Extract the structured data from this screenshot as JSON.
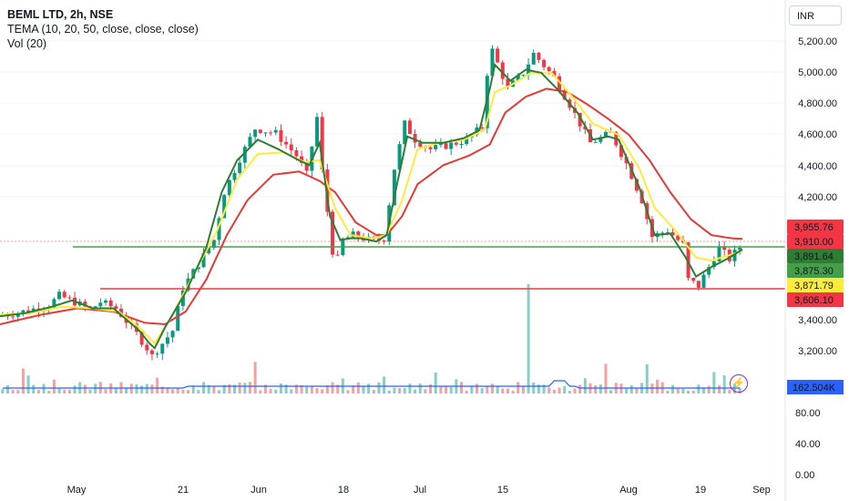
{
  "legend": {
    "symbol": "BEML LTD, 2h, NSE",
    "indicator": "TEMA (10, 20, 50, close, close, close)",
    "volume": "Vol (20)"
  },
  "currency": "INR",
  "colors": {
    "up": "#089981",
    "down": "#f23645",
    "tema_fast": "#2e7d32",
    "tema_mid": "#ffeb3b",
    "tema_slow": "#e53935",
    "support_top": "#43a047",
    "support_bottom": "#f23645",
    "volume_ma": "#2962ff"
  },
  "chart_data": {
    "type": "candlestick",
    "y_ticks": [
      "5,200.00",
      "5,000.00",
      "4,800.00",
      "4,600.00",
      "4,400.00",
      "4,200.00",
      "3,400.00",
      "3,200.00"
    ],
    "y_range": [
      3075,
      5250
    ],
    "x_ticks": [
      "May",
      "21",
      "Jun",
      "18",
      "Jul",
      "15",
      "Aug",
      "19",
      "Sep"
    ],
    "horizontal_lines": [
      {
        "price": 3891.64,
        "color": "#43a047"
      },
      {
        "price": 3606.1,
        "color": "#f23645"
      }
    ],
    "price_labels": [
      {
        "text": "3,955.76",
        "bg": "#f23645"
      },
      {
        "text": "3,910.00",
        "bg": "#f23645"
      },
      {
        "text": "3,891.64",
        "bg": "#2e7d32"
      },
      {
        "text": "3,875.30",
        "bg": "#43a047"
      },
      {
        "text": "3,871.79",
        "bg": "#ffeb3b"
      },
      {
        "text": "3,606.10",
        "bg": "#f23645"
      }
    ],
    "close_path": [
      [
        0,
        3470
      ],
      [
        5,
        3500
      ],
      [
        10,
        3540
      ],
      [
        12,
        3600
      ],
      [
        15,
        3560
      ],
      [
        18,
        3510
      ],
      [
        20,
        3560
      ],
      [
        23,
        3520
      ],
      [
        27,
        3360
      ],
      [
        29,
        3270
      ],
      [
        30,
        3220
      ],
      [
        34,
        3380
      ],
      [
        36,
        3650
      ],
      [
        38,
        3750
      ],
      [
        42,
        3950
      ],
      [
        44,
        4250
      ],
      [
        47,
        4460
      ],
      [
        50,
        4650
      ],
      [
        54,
        4620
      ],
      [
        58,
        4480
      ],
      [
        60,
        4360
      ],
      [
        62,
        4720
      ],
      [
        63,
        4380
      ],
      [
        65,
        3880
      ],
      [
        66,
        3830
      ],
      [
        67,
        3950
      ],
      [
        69,
        3980
      ],
      [
        73,
        3940
      ],
      [
        75,
        3960
      ],
      [
        77,
        4400
      ],
      [
        79,
        4680
      ],
      [
        81,
        4580
      ],
      [
        84,
        4520
      ],
      [
        88,
        4550
      ],
      [
        91,
        4580
      ],
      [
        94,
        4660
      ],
      [
        95,
        5000
      ],
      [
        96,
        5140
      ],
      [
        99,
        4900
      ],
      [
        102,
        5000
      ],
      [
        104,
        5120
      ],
      [
        108,
        4970
      ],
      [
        111,
        4800
      ],
      [
        115,
        4560
      ],
      [
        119,
        4620
      ],
      [
        122,
        4430
      ],
      [
        125,
        4200
      ],
      [
        127,
        3970
      ],
      [
        130,
        4010
      ],
      [
        133,
        3920
      ],
      [
        134,
        3700
      ],
      [
        136,
        3660
      ],
      [
        138,
        3780
      ],
      [
        140,
        3900
      ],
      [
        142,
        3830
      ],
      [
        144,
        3905
      ]
    ],
    "tema_fast": [
      [
        0,
        3470
      ],
      [
        5,
        3490
      ],
      [
        10,
        3530
      ],
      [
        14,
        3570
      ],
      [
        18,
        3520
      ],
      [
        22,
        3520
      ],
      [
        27,
        3380
      ],
      [
        29,
        3300
      ],
      [
        30,
        3270
      ],
      [
        32,
        3400
      ],
      [
        36,
        3620
      ],
      [
        40,
        3900
      ],
      [
        43,
        4250
      ],
      [
        46,
        4450
      ],
      [
        50,
        4580
      ],
      [
        54,
        4520
      ],
      [
        58,
        4450
      ],
      [
        60,
        4420
      ],
      [
        62,
        4560
      ],
      [
        64,
        4100
      ],
      [
        66,
        3950
      ],
      [
        68,
        3960
      ],
      [
        70,
        3960
      ],
      [
        73,
        3940
      ],
      [
        75,
        3980
      ],
      [
        77,
        4300
      ],
      [
        79,
        4600
      ],
      [
        82,
        4560
      ],
      [
        86,
        4560
      ],
      [
        90,
        4590
      ],
      [
        93,
        4640
      ],
      [
        95,
        4900
      ],
      [
        96,
        5050
      ],
      [
        99,
        4950
      ],
      [
        102,
        5020
      ],
      [
        105,
        5000
      ],
      [
        108,
        4900
      ],
      [
        112,
        4750
      ],
      [
        115,
        4580
      ],
      [
        118,
        4600
      ],
      [
        120,
        4580
      ],
      [
        124,
        4280
      ],
      [
        127,
        3980
      ],
      [
        130,
        3990
      ],
      [
        133,
        3840
      ],
      [
        135,
        3720
      ],
      [
        138,
        3780
      ],
      [
        141,
        3830
      ],
      [
        144,
        3890
      ]
    ],
    "tema_mid": [
      [
        0,
        3480
      ],
      [
        6,
        3490
      ],
      [
        12,
        3530
      ],
      [
        18,
        3520
      ],
      [
        23,
        3500
      ],
      [
        27,
        3400
      ],
      [
        30,
        3300
      ],
      [
        33,
        3450
      ],
      [
        38,
        3760
      ],
      [
        42,
        4000
      ],
      [
        46,
        4330
      ],
      [
        50,
        4490
      ],
      [
        55,
        4500
      ],
      [
        59,
        4440
      ],
      [
        62,
        4450
      ],
      [
        65,
        4150
      ],
      [
        68,
        3980
      ],
      [
        72,
        3960
      ],
      [
        75,
        3980
      ],
      [
        78,
        4200
      ],
      [
        81,
        4520
      ],
      [
        85,
        4560
      ],
      [
        90,
        4580
      ],
      [
        94,
        4640
      ],
      [
        96,
        4880
      ],
      [
        99,
        4920
      ],
      [
        103,
        5000
      ],
      [
        107,
        5000
      ],
      [
        111,
        4850
      ],
      [
        115,
        4680
      ],
      [
        120,
        4610
      ],
      [
        124,
        4400
      ],
      [
        127,
        4150
      ],
      [
        131,
        4010
      ],
      [
        135,
        3840
      ],
      [
        138,
        3820
      ],
      [
        141,
        3850
      ],
      [
        144,
        3880
      ]
    ],
    "tema_slow": [
      [
        0,
        3420
      ],
      [
        8,
        3480
      ],
      [
        15,
        3520
      ],
      [
        22,
        3500
      ],
      [
        28,
        3430
      ],
      [
        32,
        3420
      ],
      [
        36,
        3500
      ],
      [
        40,
        3700
      ],
      [
        44,
        3980
      ],
      [
        48,
        4200
      ],
      [
        53,
        4360
      ],
      [
        58,
        4380
      ],
      [
        62,
        4320
      ],
      [
        65,
        4250
      ],
      [
        69,
        4060
      ],
      [
        73,
        3980
      ],
      [
        75,
        3980
      ],
      [
        78,
        4100
      ],
      [
        81,
        4300
      ],
      [
        86,
        4420
      ],
      [
        91,
        4480
      ],
      [
        95,
        4550
      ],
      [
        98,
        4750
      ],
      [
        102,
        4850
      ],
      [
        106,
        4900
      ],
      [
        110,
        4880
      ],
      [
        114,
        4800
      ],
      [
        118,
        4710
      ],
      [
        122,
        4610
      ],
      [
        126,
        4450
      ],
      [
        130,
        4250
      ],
      [
        134,
        4080
      ],
      [
        138,
        3980
      ],
      [
        142,
        3960
      ],
      [
        144,
        3956
      ]
    ]
  },
  "volume": {
    "label": "162.504K",
    "bg": "#2962ff",
    "ticks": [
      "80.00",
      "40.00",
      "0.00"
    ]
  }
}
